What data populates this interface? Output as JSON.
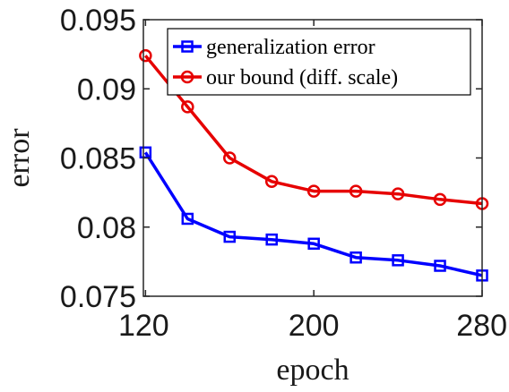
{
  "chart_data": {
    "type": "line",
    "xlabel": "epoch",
    "ylabel": "error",
    "xlim": [
      119,
      280
    ],
    "ylim": [
      0.075,
      0.095
    ],
    "xticks": [
      120,
      200,
      280
    ],
    "xtick_labels": [
      "120",
      "200",
      "280"
    ],
    "yticks": [
      0.075,
      0.08,
      0.085,
      0.09,
      0.095
    ],
    "ytick_labels": [
      "0.075",
      "0.08",
      "0.085",
      "0.09",
      "0.095"
    ],
    "grid": false,
    "legend_position": "top-right",
    "x": [
      120,
      140,
      160,
      180,
      200,
      220,
      240,
      260,
      280
    ],
    "series": [
      {
        "name": "generalization error",
        "color": "#0000ff",
        "marker": "square",
        "values": [
          0.0854,
          0.0806,
          0.0793,
          0.0791,
          0.0788,
          0.0778,
          0.0776,
          0.0772,
          0.0765
        ]
      },
      {
        "name": "our bound (diff. scale)",
        "color": "#e60000",
        "marker": "circle",
        "values": [
          0.0924,
          0.0887,
          0.085,
          0.0833,
          0.0826,
          0.0826,
          0.0824,
          0.082,
          0.0817
        ]
      }
    ]
  }
}
